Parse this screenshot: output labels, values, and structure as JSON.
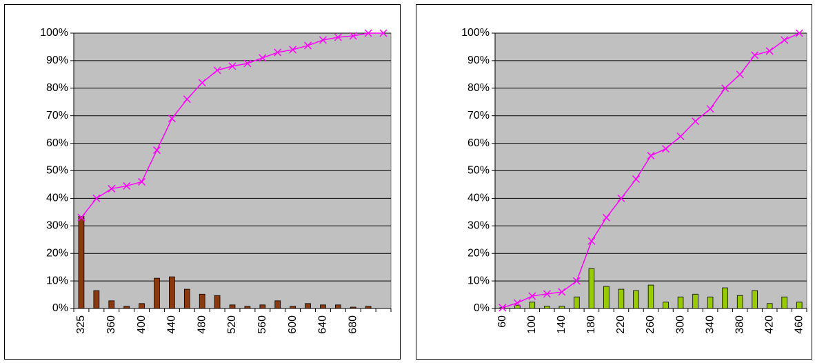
{
  "chart_data": [
    {
      "type": "combo",
      "categories": [
        "325",
        null,
        "360",
        null,
        "400",
        null,
        "440",
        null,
        "480",
        null,
        "520",
        null,
        "560",
        null,
        "600",
        null,
        "640",
        null,
        "680",
        null,
        null
      ],
      "series": [
        {
          "type": "bar",
          "color": "#8b3a0f",
          "values": [
            33.5,
            6.5,
            2.8,
            0.8,
            1.8,
            11,
            11.5,
            7,
            5.2,
            4.7,
            1.3,
            0.8,
            1.3,
            2.8,
            0.8,
            1.8,
            1.3,
            1.3,
            0.5,
            0.8,
            0
          ]
        },
        {
          "type": "line",
          "color": "#ff00ff",
          "values": [
            33,
            40,
            43.5,
            44.5,
            46,
            57.5,
            69,
            76,
            82,
            86.5,
            88,
            89,
            91,
            93,
            94,
            95.5,
            97.5,
            98.5,
            99,
            100,
            100
          ]
        }
      ],
      "ylim": [
        0,
        100
      ],
      "yticks": [
        {
          "value": 0,
          "label": "0%"
        },
        {
          "value": 10,
          "label": "10%"
        },
        {
          "value": 20,
          "label": "20%"
        },
        {
          "value": 30,
          "label": "30%"
        },
        {
          "value": 40,
          "label": "40%"
        },
        {
          "value": 50,
          "label": "50%"
        },
        {
          "value": 60,
          "label": "60%"
        },
        {
          "value": 70,
          "label": "70%"
        },
        {
          "value": 80,
          "label": "80%"
        },
        {
          "value": 90,
          "label": "90%"
        },
        {
          "value": 100,
          "label": "100%"
        }
      ],
      "grid": true,
      "plot_background": "#c0c0c0"
    },
    {
      "type": "combo",
      "categories": [
        "60",
        null,
        "100",
        null,
        "140",
        null,
        "180",
        null,
        "220",
        null,
        "260",
        null,
        "300",
        null,
        "340",
        null,
        "380",
        null,
        "420",
        null,
        "460"
      ],
      "series": [
        {
          "type": "bar",
          "color": "#99cc00",
          "values": [
            0.3,
            1.2,
            2.3,
            0.8,
            0.8,
            4.2,
            14.5,
            8,
            7,
            6.5,
            8.5,
            2.3,
            4.2,
            5.2,
            4.2,
            7.5,
            4.7,
            6.5,
            1.8,
            4.2,
            2.3
          ]
        },
        {
          "type": "line",
          "color": "#ff00ff",
          "values": [
            0.3,
            2,
            4.5,
            5.3,
            6,
            10,
            24.5,
            33,
            40,
            47,
            55.5,
            58,
            62.5,
            68,
            72.5,
            80,
            85,
            92,
            93.5,
            97.5,
            100
          ]
        }
      ],
      "ylim": [
        0,
        100
      ],
      "yticks": [
        {
          "value": 0,
          "label": "0%"
        },
        {
          "value": 10,
          "label": "10%"
        },
        {
          "value": 20,
          "label": "20%"
        },
        {
          "value": 30,
          "label": "30%"
        },
        {
          "value": 40,
          "label": "40%"
        },
        {
          "value": 50,
          "label": "50%"
        },
        {
          "value": 60,
          "label": "60%"
        },
        {
          "value": 70,
          "label": "70%"
        },
        {
          "value": 80,
          "label": "80%"
        },
        {
          "value": 90,
          "label": "90%"
        },
        {
          "value": 100,
          "label": "100%"
        }
      ],
      "grid": true,
      "plot_background": "#c0c0c0"
    }
  ]
}
